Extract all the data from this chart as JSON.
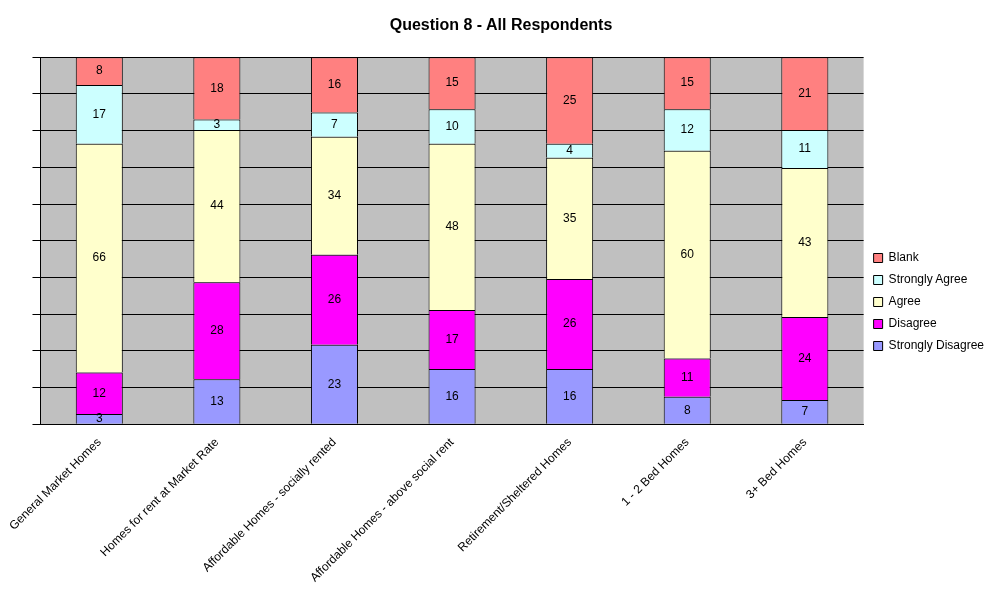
{
  "chart_data": {
    "type": "bar",
    "title": "Question 8 - All Respondents",
    "stacked": true,
    "data_labels": true,
    "grid": "y",
    "legend": "right",
    "tick_labels": "x",
    "categories": [
      "General Market Homes",
      "Homes for rent at Market Rate",
      "Affordable Homes - socially rented",
      "Affordable Homes - above social rent",
      "Retirement/Sheltered Homes",
      "1 - 2 Bed Homes",
      "3+ Bed Homes"
    ],
    "ylim": [
      0,
      106
    ],
    "series": [
      {
        "name": "Strongly Disagree",
        "color": "#9999ff",
        "values": [
          3,
          13,
          23,
          16,
          16,
          8,
          7
        ]
      },
      {
        "name": "Disagree",
        "color": "#ff00ff",
        "values": [
          12,
          28,
          26,
          17,
          26,
          11,
          24
        ]
      },
      {
        "name": "Agree",
        "color": "#ffffcc",
        "values": [
          66,
          44,
          34,
          48,
          35,
          60,
          43
        ]
      },
      {
        "name": "Strongly Agree",
        "color": "#ccffff",
        "values": [
          17,
          3,
          7,
          10,
          4,
          12,
          11
        ]
      },
      {
        "name": "Blank",
        "color": "#ff8080",
        "values": [
          8,
          18,
          16,
          15,
          25,
          15,
          21
        ]
      }
    ]
  }
}
